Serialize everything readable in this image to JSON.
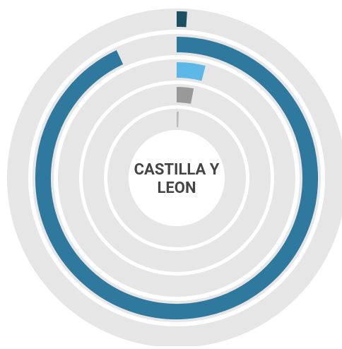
{
  "chart_data": {
    "type": "radial-bar",
    "title": "CASTILLA Y LEON",
    "categories": [
      null,
      null,
      null,
      null,
      null
    ],
    "values": [
      1,
      93,
      4,
      3,
      0.5
    ],
    "colors": [
      "#1d4f63",
      "#2f789e",
      "#5db8e8",
      "#999999",
      "#bbbbbb"
    ],
    "track_color": "#e6e6e6",
    "max": 100
  }
}
